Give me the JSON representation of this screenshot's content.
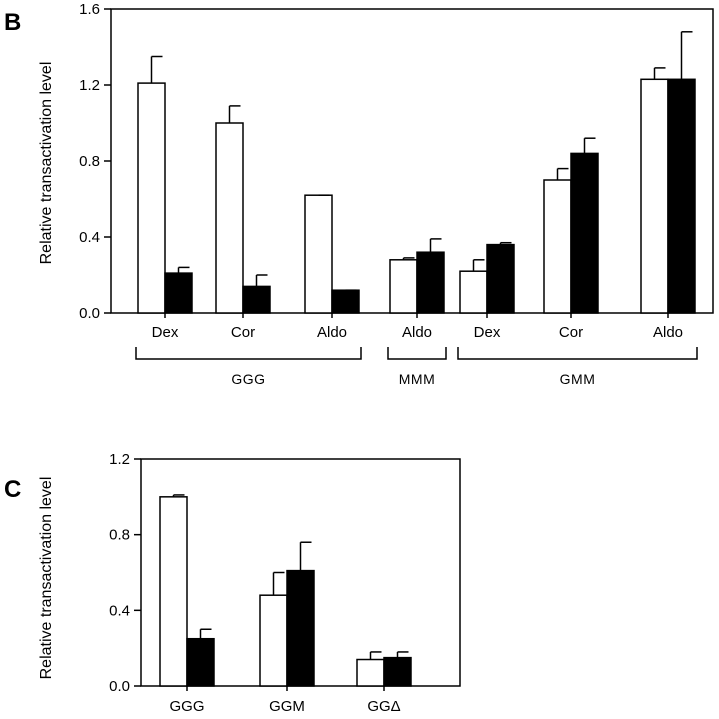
{
  "chart_data": [
    {
      "panel": "B",
      "type": "bar",
      "title": "",
      "xlabel": "",
      "ylabel": "Relative transactivation level",
      "ylim": [
        0,
        1.6
      ],
      "yticks": [
        "0.0",
        "0.4",
        "0.8",
        "1.2",
        "1.6"
      ],
      "ytick_values": [
        0,
        0.4,
        0.8,
        1.2,
        1.6
      ],
      "grid": false,
      "series": [
        {
          "name": "open",
          "fill": "#ffffff",
          "values": [
            1.21,
            1.0,
            0.62,
            0.28,
            0.22,
            0.7,
            1.23
          ],
          "errors": [
            0.14,
            0.09,
            0.0,
            0.01,
            0.06,
            0.06,
            0.06
          ]
        },
        {
          "name": "filled",
          "fill": "#000000",
          "values": [
            0.21,
            0.14,
            0.12,
            0.32,
            0.36,
            0.84,
            1.23
          ],
          "errors": [
            0.03,
            0.06,
            0.0,
            0.07,
            0.01,
            0.08,
            0.25
          ]
        }
      ],
      "categories": [
        "Dex",
        "Cor",
        "Aldo",
        "Aldo",
        "Dex",
        "Cor",
        "Aldo"
      ],
      "groups": [
        {
          "label": "GGG",
          "from": 0,
          "to": 2
        },
        {
          "label": "MMM",
          "from": 3,
          "to": 3
        },
        {
          "label": "GMM",
          "from": 4,
          "to": 6
        }
      ]
    },
    {
      "panel": "C",
      "type": "bar",
      "title": "",
      "xlabel": "",
      "ylabel": "Relative transactivation level",
      "ylim": [
        0,
        1.2
      ],
      "yticks": [
        "0.0",
        "0.4",
        "0.8",
        "1.2"
      ],
      "ytick_values": [
        0,
        0.4,
        0.8,
        1.2
      ],
      "grid": false,
      "series": [
        {
          "name": "open",
          "fill": "#ffffff",
          "values": [
            1.0,
            0.48,
            0.14
          ],
          "errors": [
            0.01,
            0.12,
            0.04
          ]
        },
        {
          "name": "filled",
          "fill": "#000000",
          "values": [
            0.25,
            0.61,
            0.15
          ],
          "errors": [
            0.05,
            0.15,
            0.03
          ]
        }
      ],
      "categories": [
        "GGG",
        "GGM",
        "GGΔ"
      ],
      "groups": []
    }
  ]
}
